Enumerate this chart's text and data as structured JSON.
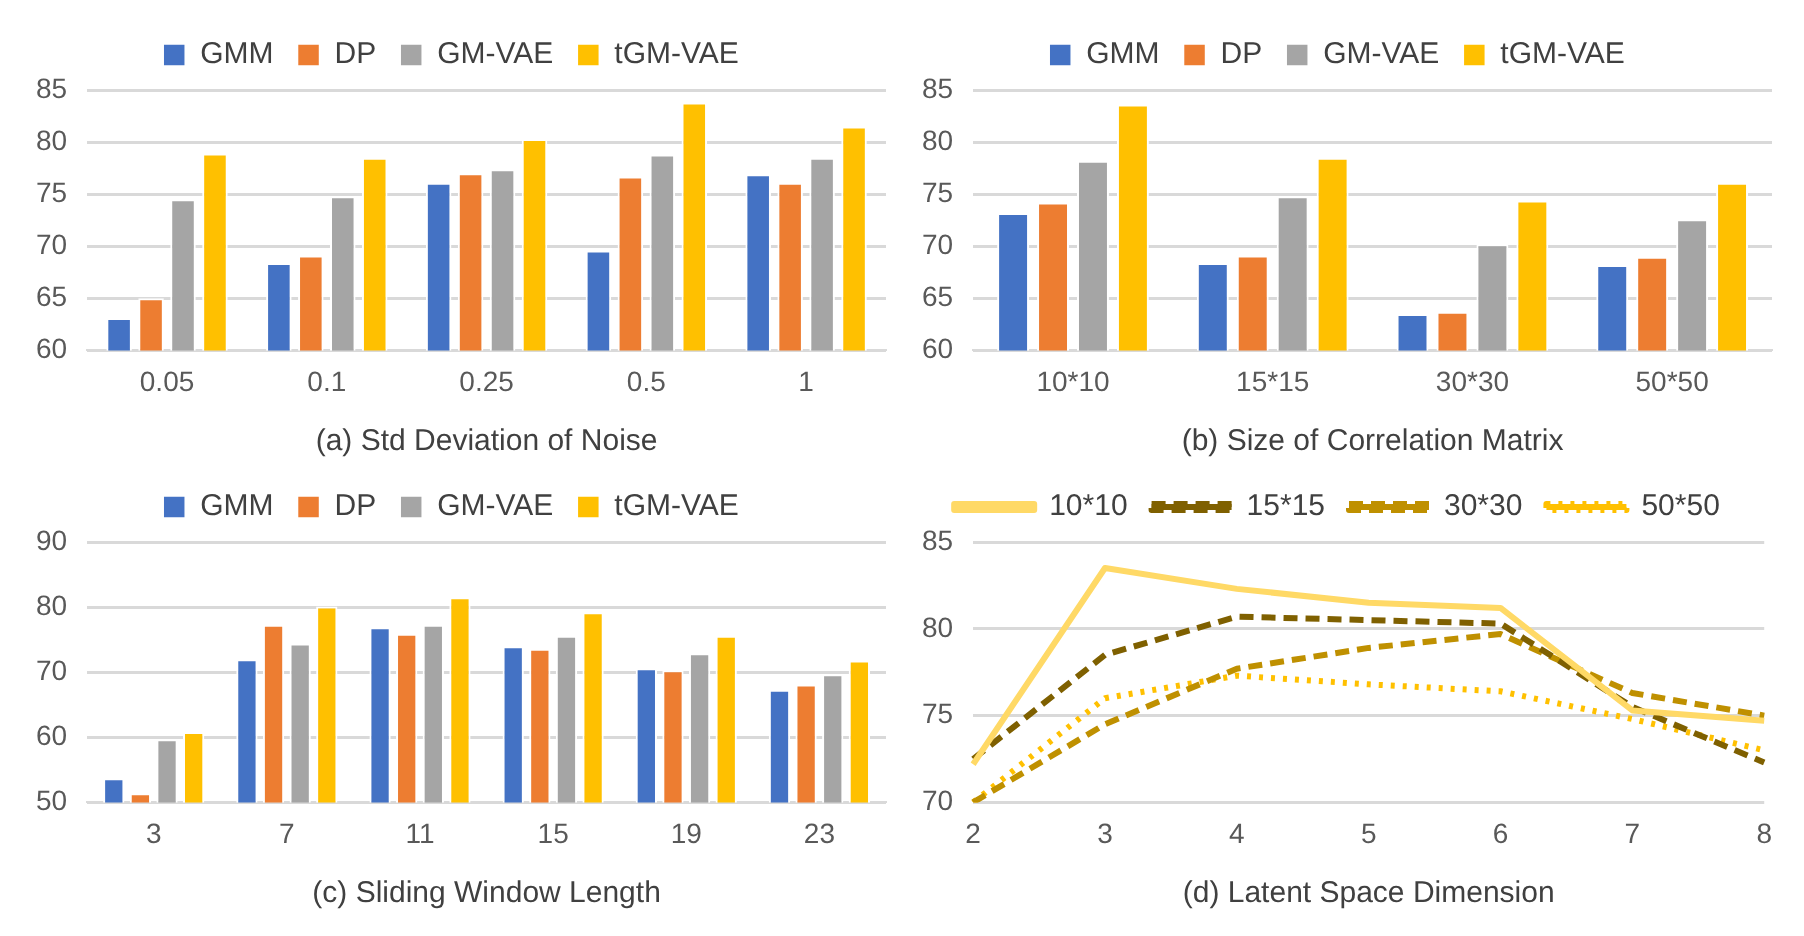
{
  "chart_data": [
    {
      "type": "bar",
      "xlabel": "(a) Std Deviation of Noise",
      "categories": [
        "0.05",
        "0.1",
        "0.25",
        "0.5",
        "1"
      ],
      "ylim": [
        60,
        85
      ],
      "yticks": [
        60,
        65,
        70,
        75,
        80,
        85
      ],
      "grid": "y",
      "legend": "top",
      "series": [
        {
          "name": "GMM",
          "color": "#4472c4",
          "values": [
            63.1,
            68.4,
            76.1,
            69.6,
            76.9
          ]
        },
        {
          "name": "DP",
          "color": "#ed7d31",
          "values": [
            65.0,
            69.1,
            77.0,
            76.7,
            76.1
          ]
        },
        {
          "name": "GM-VAE",
          "color": "#a5a5a5",
          "values": [
            74.5,
            74.8,
            77.4,
            78.8,
            78.5
          ]
        },
        {
          "name": "tGM-VAE",
          "color": "#ffc000",
          "values": [
            78.9,
            78.5,
            80.3,
            83.8,
            81.5
          ]
        }
      ]
    },
    {
      "type": "bar",
      "xlabel": "(b) Size of Correlation Matrix",
      "categories": [
        "10*10",
        "15*15",
        "30*30",
        "50*50"
      ],
      "ylim": [
        60,
        85
      ],
      "yticks": [
        60,
        65,
        70,
        75,
        80,
        85
      ],
      "grid": "y",
      "legend": "top",
      "series": [
        {
          "name": "GMM",
          "color": "#4472c4",
          "values": [
            73.2,
            68.4,
            63.5,
            68.2
          ]
        },
        {
          "name": "DP",
          "color": "#ed7d31",
          "values": [
            74.2,
            69.1,
            63.7,
            69.0
          ]
        },
        {
          "name": "GM-VAE",
          "color": "#a5a5a5",
          "values": [
            78.2,
            74.8,
            70.2,
            72.6
          ]
        },
        {
          "name": "tGM-VAE",
          "color": "#ffc000",
          "values": [
            83.6,
            78.5,
            74.4,
            76.1
          ]
        }
      ]
    },
    {
      "type": "bar",
      "xlabel": "(c) Sliding Window Length",
      "categories": [
        "3",
        "7",
        "11",
        "15",
        "19",
        "23"
      ],
      "ylim": [
        50,
        90
      ],
      "yticks": [
        50,
        60,
        70,
        80,
        90
      ],
      "grid": "y",
      "legend": "top",
      "series": [
        {
          "name": "GMM",
          "color": "#4472c4",
          "values": [
            53.7,
            72.0,
            76.9,
            74.0,
            70.6,
            67.3
          ]
        },
        {
          "name": "DP",
          "color": "#ed7d31",
          "values": [
            51.4,
            77.3,
            75.9,
            73.6,
            70.3,
            68.1
          ]
        },
        {
          "name": "GM-VAE",
          "color": "#a5a5a5",
          "values": [
            59.7,
            74.4,
            77.3,
            75.6,
            72.9,
            69.7
          ]
        },
        {
          "name": "tGM-VAE",
          "color": "#ffc000",
          "values": [
            60.8,
            80.1,
            81.5,
            79.2,
            75.6,
            71.8
          ]
        }
      ]
    },
    {
      "type": "line",
      "xlabel": "(d) Latent Space Dimension",
      "categories": [
        "2",
        "3",
        "4",
        "5",
        "6",
        "7",
        "8"
      ],
      "ylim": [
        70,
        85
      ],
      "yticks": [
        70,
        75,
        80,
        85
      ],
      "grid": "y",
      "legend": "top",
      "marker": "none",
      "series": [
        {
          "name": "10*10",
          "color": "#ffd966",
          "line_style": "solid",
          "values": [
            72.2,
            83.5,
            82.3,
            81.5,
            81.2,
            75.3,
            74.7
          ]
        },
        {
          "name": "15*15",
          "color": "#7f6000",
          "line_style": "dashed",
          "values": [
            72.5,
            78.5,
            80.7,
            80.5,
            80.3,
            75.5,
            72.3
          ]
        },
        {
          "name": "30*30",
          "color": "#bf9000",
          "line_style": "dashed",
          "values": [
            70.0,
            74.5,
            77.7,
            78.9,
            79.7,
            76.3,
            75.0
          ]
        },
        {
          "name": "50*50",
          "color": "#ffc000",
          "line_style": "dotted",
          "values": [
            70.0,
            76.0,
            77.3,
            76.8,
            76.4,
            74.8,
            73.0
          ]
        }
      ]
    }
  ]
}
